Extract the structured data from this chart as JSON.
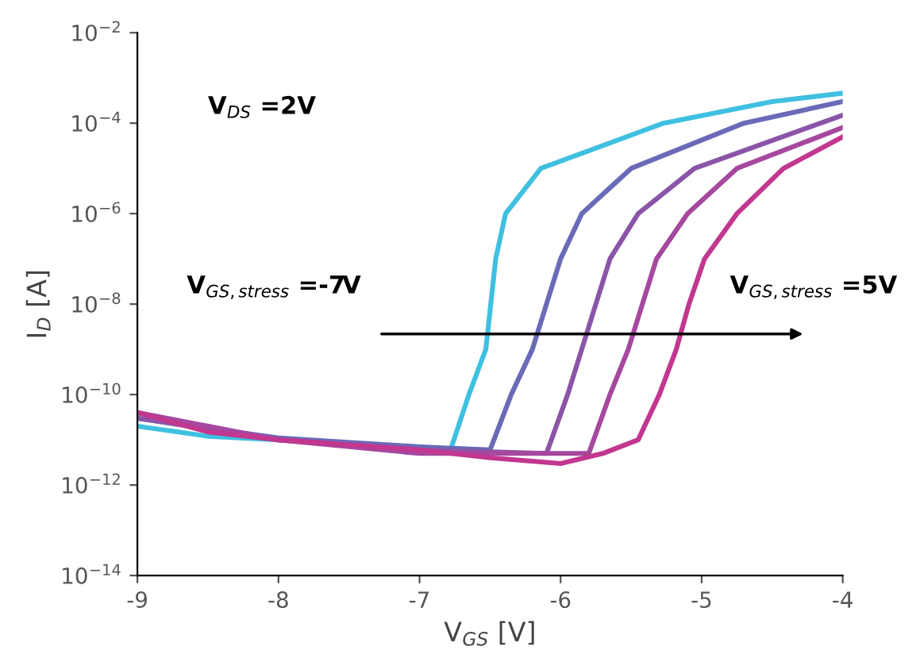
{
  "chart_data": {
    "type": "line",
    "xlabel": "V$_{GS}$ [V]",
    "ylabel": "I$_{D}$ [A]",
    "log": "y",
    "grid": false,
    "legend": false,
    "marker": "none",
    "line_style": "solid",
    "xlim": [
      -9,
      -4
    ],
    "xticks": [
      -9,
      -8,
      -7,
      -6,
      -5,
      -4
    ],
    "ylim": [
      1e-14,
      0.01
    ],
    "yticks": [
      {
        "value": 1e-14,
        "label": "10$^{−14}$"
      },
      {
        "value": 1e-12,
        "label": "10$^{−12}$"
      },
      {
        "value": 1e-10,
        "label": "10$^{−10}$"
      },
      {
        "value": 1e-08,
        "label": "10$^{−8}$"
      },
      {
        "value": 1e-06,
        "label": "10$^{−6}$"
      },
      {
        "value": 0.0001,
        "label": "10$^{−4}$"
      },
      {
        "value": 0.01,
        "label": "10$^{−2}$"
      }
    ],
    "annotations": [
      "V$_{DS}$ =2V",
      "V$_{GS,stress}$ =-7V",
      "V$_{GS,stress}$ =5V"
    ],
    "series": [
      {
        "color": "#3fc0e0",
        "x": [
          -9,
          -8.5,
          -8,
          -7.5,
          -7,
          -6.78,
          -6.65,
          -6.53,
          -6.46,
          -6.39,
          -6.14,
          -5.27,
          -4.5,
          -4
        ],
        "values": [
          2e-11,
          1.2e-11,
          1e-11,
          8e-12,
          7e-12,
          6e-12,
          1e-10,
          1e-09,
          1e-07,
          1e-06,
          1e-05,
          0.0001,
          0.0003,
          0.00046
        ]
      },
      {
        "color": "#6a6ab8",
        "x": [
          -9,
          -8,
          -7,
          -6.5,
          -6.35,
          -6.2,
          -6.1,
          -6.0,
          -5.85,
          -5.5,
          -4.7,
          -4
        ],
        "values": [
          3e-11,
          1.1e-11,
          7e-12,
          6e-12,
          1e-10,
          1e-09,
          1e-08,
          1e-07,
          1e-06,
          1e-05,
          0.0001,
          0.0003
        ]
      },
      {
        "color": "#8a55a8",
        "x": [
          -9,
          -8,
          -7,
          -6.1,
          -5.95,
          -5.85,
          -5.75,
          -5.65,
          -5.45,
          -5.05,
          -4
        ],
        "values": [
          3e-11,
          1e-11,
          6e-12,
          5e-12,
          1e-10,
          1e-09,
          1e-08,
          1e-07,
          1e-06,
          1e-05,
          0.00015
        ]
      },
      {
        "color": "#a5489e",
        "x": [
          -9,
          -8,
          -7,
          -5.8,
          -5.65,
          -5.52,
          -5.42,
          -5.32,
          -5.1,
          -4.75,
          -4
        ],
        "values": [
          4e-11,
          1e-11,
          5e-12,
          5e-12,
          1e-10,
          1e-09,
          1e-08,
          1e-07,
          1e-06,
          1e-05,
          8e-05
        ]
      },
      {
        "color": "#c2378f",
        "x": [
          -9,
          -8.5,
          -8,
          -7,
          -6.5,
          -6,
          -5.7,
          -5.45,
          -5.3,
          -5.18,
          -5.09,
          -4.98,
          -4.75,
          -4.42,
          -4
        ],
        "values": [
          4e-11,
          1.5e-11,
          1e-11,
          6e-12,
          4e-12,
          3e-12,
          5e-12,
          1e-11,
          1e-10,
          1e-09,
          1e-08,
          1e-07,
          1e-06,
          1e-05,
          5e-05
        ]
      }
    ]
  }
}
